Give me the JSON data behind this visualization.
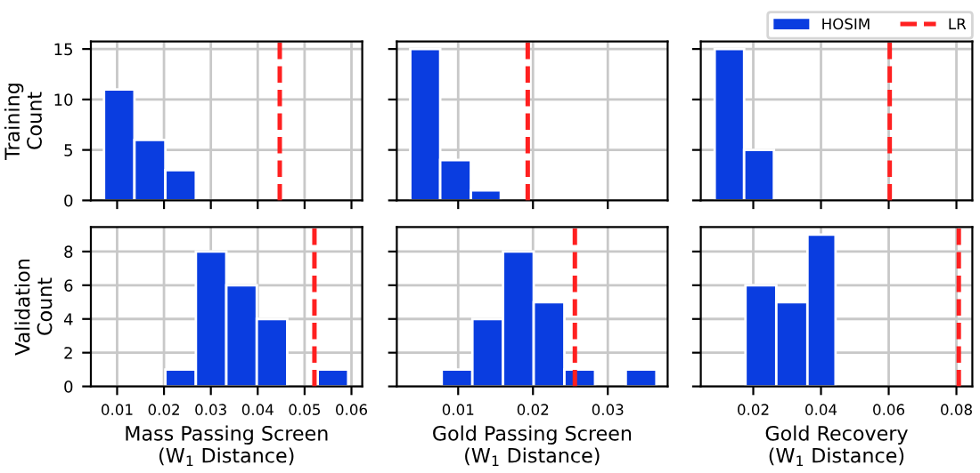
{
  "chart_data": [
    {
      "type": "histogram",
      "ylabel": "Training\nCount",
      "bins": [
        0.0072,
        0.0137,
        0.0203,
        0.0268
      ],
      "series": [
        {
          "color": "#0a3de0",
          "values": [
            11,
            6,
            3
          ]
        }
      ],
      "ref_lines": [
        {
          "axis": "x",
          "value": 0.0447,
          "color": "#ff2020",
          "line_style": "dashed"
        }
      ],
      "xlim": [
        0.0044,
        0.0623
      ],
      "xticks": [
        0.01,
        0.02,
        0.03,
        0.04,
        0.05,
        0.06
      ],
      "ylim": [
        0,
        15.75
      ],
      "yticks": [
        0,
        5,
        10,
        15
      ],
      "grid": true,
      "tick_labels": "y"
    },
    {
      "type": "histogram",
      "bins": [
        0.0036,
        0.0076,
        0.0117,
        0.0157
      ],
      "series": [
        {
          "color": "#0a3de0",
          "values": [
            15,
            4,
            1
          ]
        }
      ],
      "ref_lines": [
        {
          "axis": "x",
          "value": 0.0193,
          "color": "#ff2020",
          "line_style": "dashed"
        }
      ],
      "xlim": [
        0.0018,
        0.038
      ],
      "xticks": [
        0.01,
        0.02,
        0.03
      ],
      "ylim": [
        0,
        15.75
      ],
      "yticks": [
        0,
        5,
        10,
        15
      ],
      "grid": true,
      "tick_labels": false
    },
    {
      "type": "histogram",
      "bins": [
        0.0086,
        0.0173,
        0.0261
      ],
      "series": [
        {
          "name": "HOSIM",
          "color": "#0a3de0",
          "values": [
            15,
            5
          ]
        }
      ],
      "ref_lines": [
        {
          "axis": "x",
          "value": 0.0603,
          "label": "LR",
          "color": "#ff2020",
          "line_style": "dashed"
        }
      ],
      "xlim": [
        0.0045,
        0.0847
      ],
      "xticks": [
        0.02,
        0.04,
        0.06,
        0.08
      ],
      "ylim": [
        0,
        15.75
      ],
      "yticks": [
        0,
        5,
        10,
        15
      ],
      "grid": true,
      "tick_labels": false,
      "legend": "top right"
    },
    {
      "type": "histogram",
      "ylabel": "Validation\nCount",
      "xlabel": "Mass Passing Screen\n(W$_{1}$ Distance)",
      "bins": [
        0.0203,
        0.0268,
        0.0333,
        0.0398,
        0.0463,
        0.0528,
        0.0593
      ],
      "series": [
        {
          "color": "#0a3de0",
          "values": [
            1,
            8,
            6,
            4,
            0,
            1
          ]
        }
      ],
      "ref_lines": [
        {
          "axis": "x",
          "value": 0.0521,
          "color": "#ff2020",
          "line_style": "dashed"
        }
      ],
      "xlim": [
        0.0044,
        0.0623
      ],
      "xticks": [
        0.01,
        0.02,
        0.03,
        0.04,
        0.05,
        0.06
      ],
      "ylim": [
        0,
        9.45
      ],
      "yticks": [
        0,
        2,
        4,
        6,
        8
      ],
      "grid": true
    },
    {
      "type": "histogram",
      "xlabel": "Gold Passing Screen\n(W$_{1}$ Distance)",
      "bins": [
        0.0078,
        0.0119,
        0.016,
        0.0201,
        0.0242,
        0.0283,
        0.0324,
        0.0365
      ],
      "series": [
        {
          "color": "#0a3de0",
          "values": [
            1,
            4,
            8,
            5,
            1,
            0,
            1
          ]
        }
      ],
      "ref_lines": [
        {
          "axis": "x",
          "value": 0.0256,
          "color": "#ff2020",
          "line_style": "dashed"
        }
      ],
      "xlim": [
        0.0018,
        0.038
      ],
      "xticks": [
        0.01,
        0.02,
        0.03
      ],
      "ylim": [
        0,
        9.45
      ],
      "yticks": [
        0,
        2,
        4,
        6,
        8
      ],
      "grid": true,
      "tick_labels": "x"
    },
    {
      "type": "histogram",
      "xlabel": "Gold Recovery\n(W$_{1}$ Distance)",
      "bins": [
        0.0177,
        0.0268,
        0.036,
        0.0443
      ],
      "series": [
        {
          "color": "#0a3de0",
          "values": [
            6,
            5,
            9
          ]
        }
      ],
      "ref_lines": [
        {
          "axis": "x",
          "value": 0.0807,
          "color": "#ff2020",
          "line_style": "dashed"
        }
      ],
      "xlim": [
        0.0045,
        0.0847
      ],
      "xticks": [
        0.02,
        0.04,
        0.06,
        0.08
      ],
      "ylim": [
        0,
        9.45
      ],
      "yticks": [
        0,
        2,
        4,
        6,
        8
      ],
      "grid": true,
      "tick_labels": "x"
    }
  ]
}
